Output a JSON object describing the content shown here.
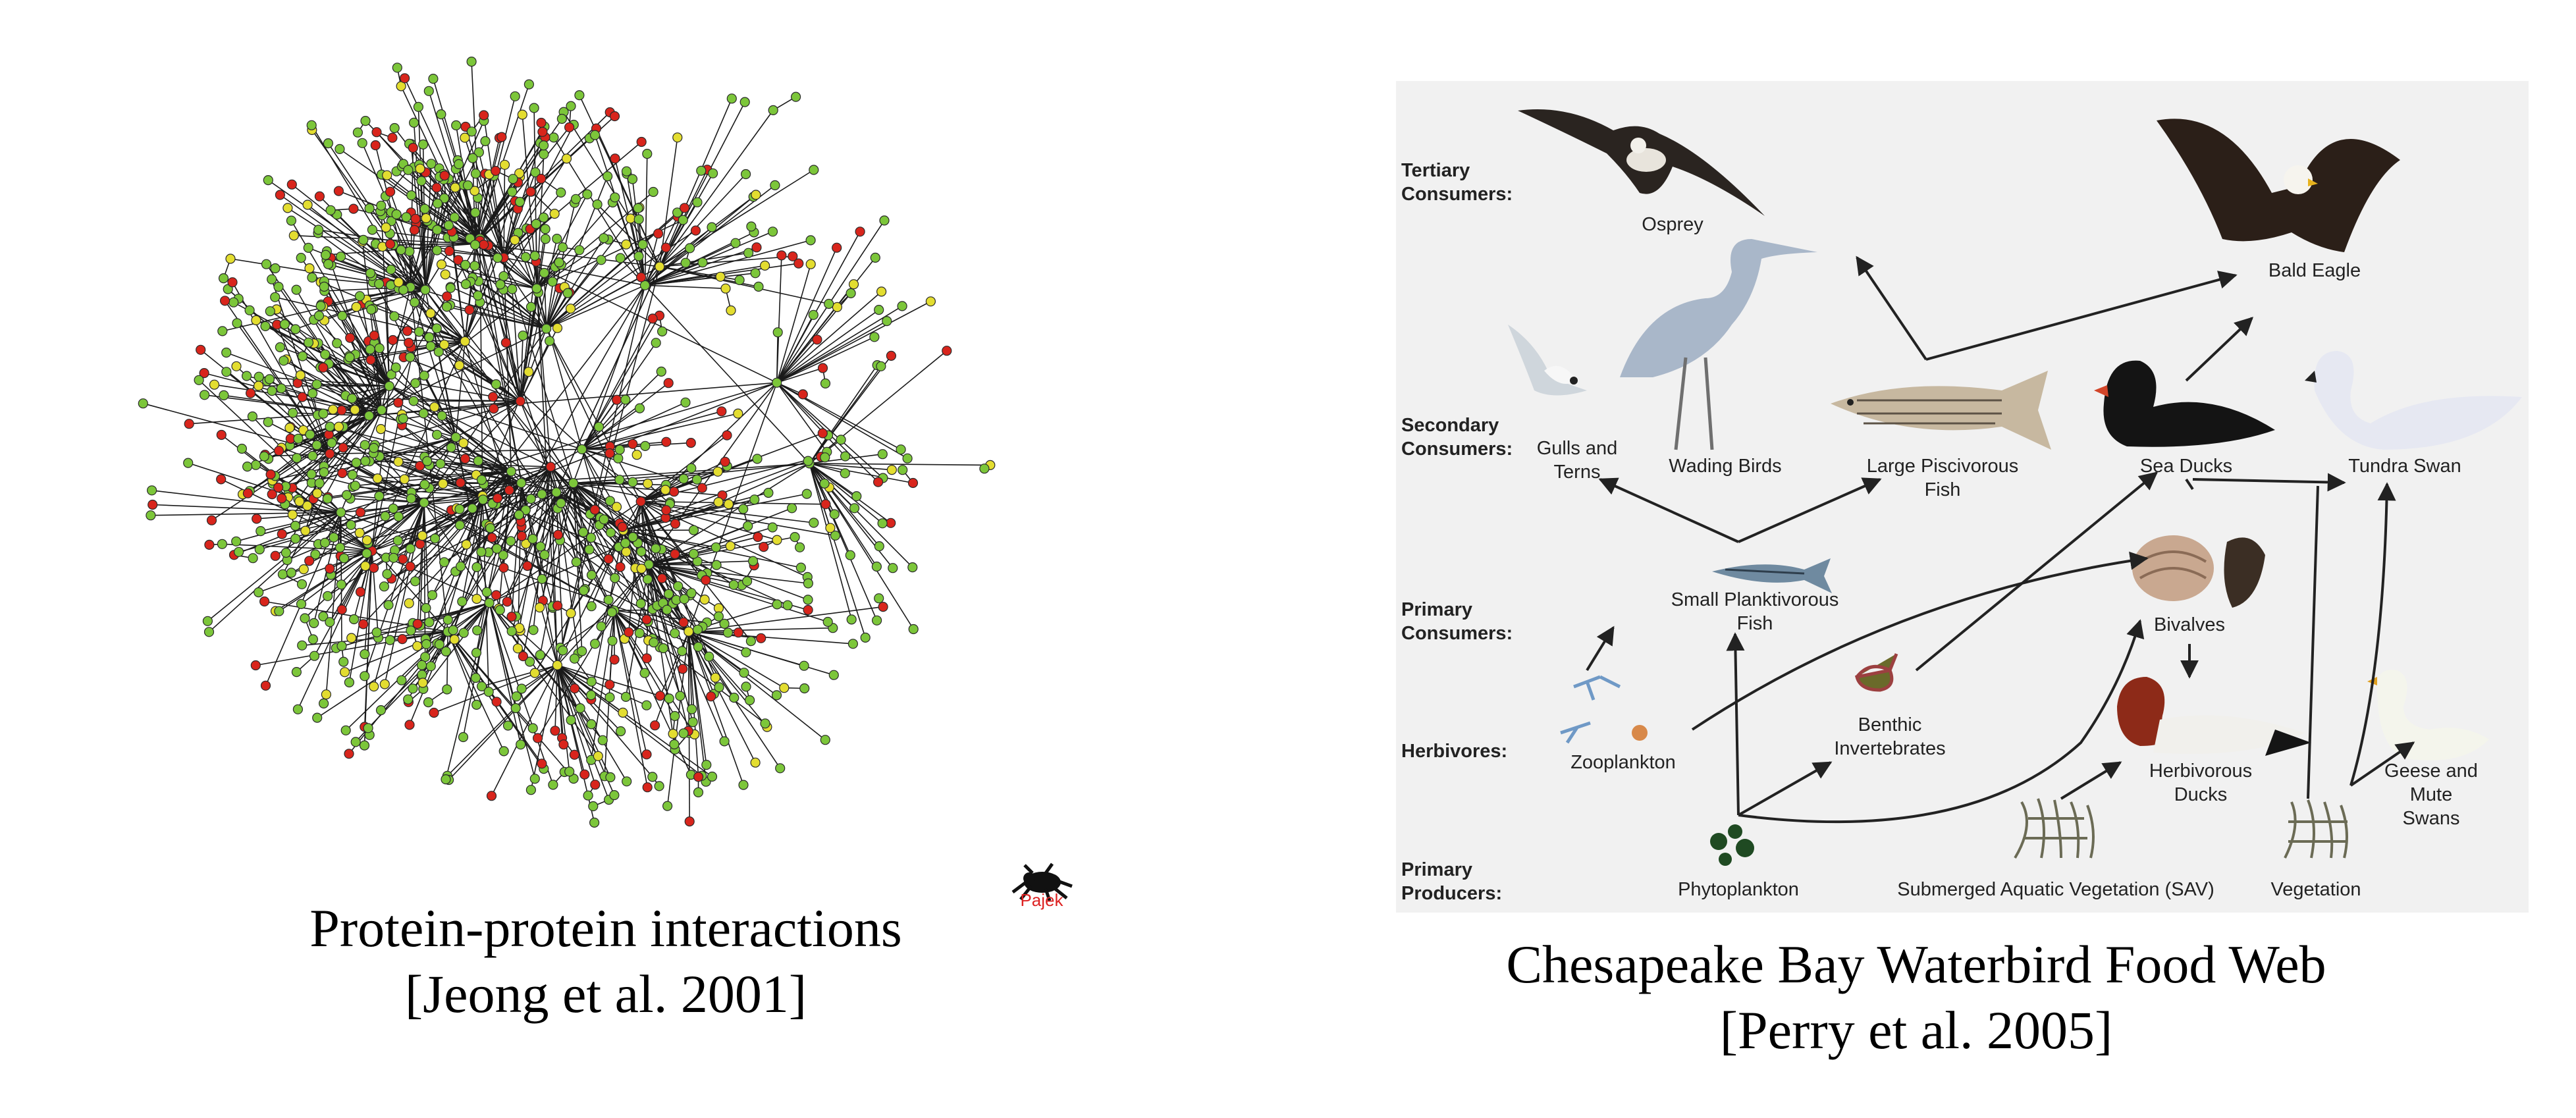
{
  "left_figure": {
    "caption_line1": "Protein-protein interactions",
    "caption_line2": "[Jeong et al. 2001]",
    "logo_text": "Pajek",
    "node_colors": {
      "green": "#7cc63a",
      "red": "#d8251c",
      "yellow": "#e3dd30",
      "edge": "#1a1a1a"
    }
  },
  "right_figure": {
    "caption_line1": "Chesapeake Bay Waterbird Food Web",
    "caption_line2": "[Perry et al. 2005]",
    "levels": [
      {
        "id": "tertiary",
        "label": "Tertiary\nConsumers:"
      },
      {
        "id": "secondary",
        "label": "Secondary\nConsumers:"
      },
      {
        "id": "primary",
        "label": "Primary\nConsumers:"
      },
      {
        "id": "herbivores",
        "label": "Herbivores:"
      },
      {
        "id": "producers",
        "label": "Primary\nProducers:"
      }
    ],
    "organisms": [
      {
        "id": "osprey",
        "label": "Osprey"
      },
      {
        "id": "bald-eagle",
        "label": "Bald Eagle"
      },
      {
        "id": "gulls-terns",
        "label": "Gulls and\nTerns"
      },
      {
        "id": "wading-birds",
        "label": "Wading Birds"
      },
      {
        "id": "piscivorous-fish",
        "label": "Large Piscivorous\nFish"
      },
      {
        "id": "sea-ducks",
        "label": "Sea Ducks"
      },
      {
        "id": "tundra-swan",
        "label": "Tundra Swan"
      },
      {
        "id": "planktivorous-fish",
        "label": "Small Planktivorous\nFish"
      },
      {
        "id": "bivalves",
        "label": "Bivalves"
      },
      {
        "id": "zooplankton",
        "label": "Zooplankton"
      },
      {
        "id": "benthic-invertebrates",
        "label": "Benthic\nInvertebrates"
      },
      {
        "id": "herbivorous-ducks",
        "label": "Herbivorous\nDucks"
      },
      {
        "id": "geese-swans",
        "label": "Geese and\nMute Swans"
      },
      {
        "id": "phytoplankton",
        "label": "Phytoplankton"
      },
      {
        "id": "sav",
        "label": "Submerged Aquatic Vegetation (SAV)"
      },
      {
        "id": "vegetation",
        "label": "Vegetation"
      }
    ]
  }
}
